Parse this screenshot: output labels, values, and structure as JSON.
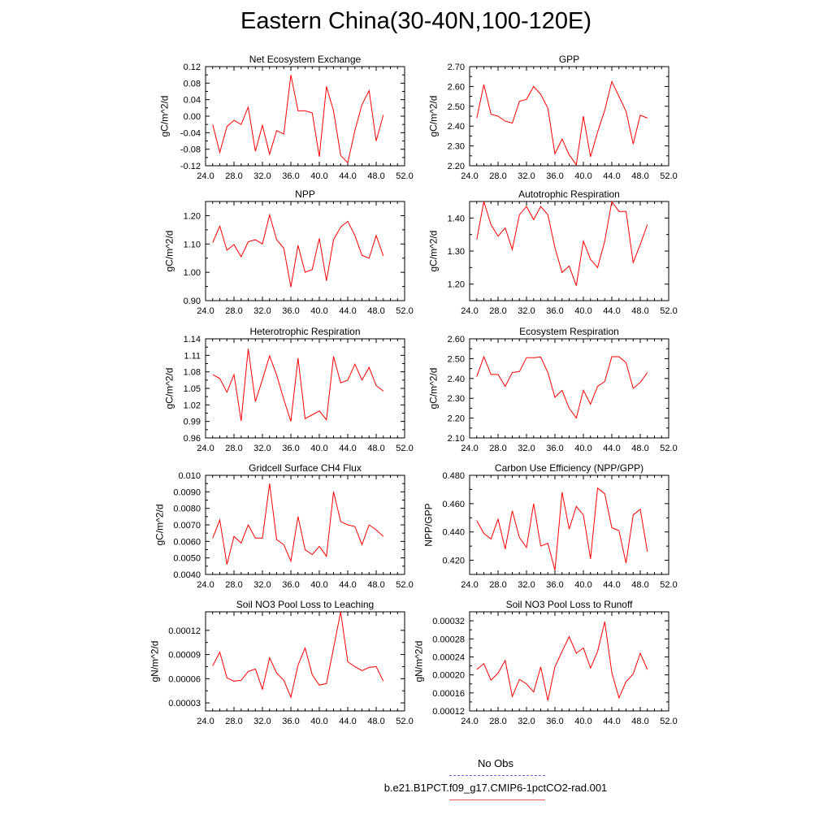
{
  "title": "Eastern China(30-40N,100-120E)",
  "legend": {
    "obs_label": "No Obs",
    "obs_color": "#6b6bd6",
    "model_label": "b.e21.B1PCT.f09_g17.CMIP6-1pctCO2-rad.001",
    "model_color": "#e05a5a"
  },
  "line_color": "#ff0000",
  "chart_data": [
    {
      "type": "line",
      "title": "Net Ecosystem Exchange",
      "ylabel": "gC/m^2/d",
      "xlim": [
        24,
        52
      ],
      "xticks": [
        24,
        28,
        32,
        36,
        40,
        44,
        48,
        52
      ],
      "xtick_labels": [
        "24.0",
        "28.0",
        "32.0",
        "36.0",
        "40.0",
        "44.0",
        "48.0",
        "52.0"
      ],
      "ylim": [
        -0.12,
        0.12
      ],
      "yticks": [
        -0.12,
        -0.08,
        -0.04,
        0.0,
        0.04,
        0.08,
        0.12
      ],
      "ytick_labels": [
        "-0.12",
        "-0.08",
        "-0.04",
        "0.00",
        "0.04",
        "0.08",
        "0.12"
      ],
      "x": [
        25,
        26,
        27,
        28,
        29,
        30,
        31,
        32,
        33,
        34,
        35,
        36,
        37,
        38,
        39,
        40,
        41,
        42,
        43,
        44,
        45,
        46,
        47,
        48,
        49
      ],
      "y": [
        -0.02,
        -0.088,
        -0.025,
        -0.01,
        -0.02,
        0.022,
        -0.085,
        -0.022,
        -0.092,
        -0.035,
        -0.043,
        0.1,
        0.013,
        0.013,
        0.008,
        -0.098,
        0.072,
        0.013,
        -0.095,
        -0.113,
        -0.035,
        0.028,
        0.062,
        -0.06,
        0.003
      ]
    },
    {
      "type": "line",
      "title": "GPP",
      "ylabel": "gC/m^2/d",
      "xlim": [
        24,
        52
      ],
      "xticks": [
        24,
        28,
        32,
        36,
        40,
        44,
        48,
        52
      ],
      "xtick_labels": [
        "24.0",
        "28.0",
        "32.0",
        "36.0",
        "40.0",
        "44.0",
        "48.0",
        "52.0"
      ],
      "ylim": [
        2.2,
        2.7
      ],
      "yticks": [
        2.2,
        2.3,
        2.4,
        2.5,
        2.6,
        2.7
      ],
      "ytick_labels": [
        "2.20",
        "2.30",
        "2.40",
        "2.50",
        "2.60",
        "2.70"
      ],
      "x": [
        25,
        26,
        27,
        28,
        29,
        30,
        31,
        32,
        33,
        34,
        35,
        36,
        37,
        38,
        39,
        40,
        41,
        42,
        43,
        44,
        45,
        46,
        47,
        48,
        49
      ],
      "y": [
        2.44,
        2.61,
        2.46,
        2.45,
        2.425,
        2.415,
        2.525,
        2.535,
        2.6,
        2.56,
        2.49,
        2.26,
        2.335,
        2.255,
        2.205,
        2.45,
        2.245,
        2.37,
        2.48,
        2.625,
        2.55,
        2.475,
        2.31,
        2.455,
        2.44
      ]
    },
    {
      "type": "line",
      "title": "NPP",
      "ylabel": "gC/m^2/d",
      "xlim": [
        24,
        52
      ],
      "xticks": [
        24,
        28,
        32,
        36,
        40,
        44,
        48,
        52
      ],
      "xtick_labels": [
        "24.0",
        "28.0",
        "32.0",
        "36.0",
        "40.0",
        "44.0",
        "48.0",
        "52.0"
      ],
      "ylim": [
        0.9,
        1.25
      ],
      "yticks": [
        0.9,
        1.0,
        1.1,
        1.2
      ],
      "ytick_labels": [
        "0.90",
        "1.00",
        "1.10",
        "1.20"
      ],
      "x": [
        25,
        26,
        27,
        28,
        29,
        30,
        31,
        32,
        33,
        34,
        35,
        36,
        37,
        38,
        39,
        40,
        41,
        42,
        43,
        44,
        45,
        46,
        47,
        48,
        49
      ],
      "y": [
        1.105,
        1.163,
        1.078,
        1.098,
        1.055,
        1.108,
        1.115,
        1.1,
        1.203,
        1.115,
        1.085,
        0.948,
        1.095,
        1.0,
        1.01,
        1.12,
        0.97,
        1.115,
        1.16,
        1.18,
        1.13,
        1.06,
        1.05,
        1.13,
        1.058
      ]
    },
    {
      "type": "line",
      "title": "Autotrophic Respiration",
      "ylabel": "gC/m^2/d",
      "xlim": [
        24,
        52
      ],
      "xticks": [
        24,
        28,
        32,
        36,
        40,
        44,
        48,
        52
      ],
      "xtick_labels": [
        "24.0",
        "28.0",
        "32.0",
        "36.0",
        "40.0",
        "44.0",
        "48.0",
        "52.0"
      ],
      "ylim": [
        1.15,
        1.45
      ],
      "yticks": [
        1.2,
        1.3,
        1.4
      ],
      "ytick_labels": [
        "1.20",
        "1.30",
        "1.40"
      ],
      "x": [
        25,
        26,
        27,
        28,
        29,
        30,
        31,
        32,
        33,
        34,
        35,
        36,
        37,
        38,
        39,
        40,
        41,
        42,
        43,
        44,
        45,
        46,
        47,
        48,
        49
      ],
      "y": [
        1.335,
        1.45,
        1.38,
        1.345,
        1.37,
        1.305,
        1.41,
        1.435,
        1.395,
        1.435,
        1.41,
        1.31,
        1.235,
        1.255,
        1.195,
        1.33,
        1.275,
        1.25,
        1.33,
        1.45,
        1.42,
        1.42,
        1.265,
        1.32,
        1.38
      ]
    },
    {
      "type": "line",
      "title": "Heterotrophic Respiration",
      "ylabel": "gC/m^2/d",
      "xlim": [
        24,
        52
      ],
      "xticks": [
        24,
        28,
        32,
        36,
        40,
        44,
        48,
        52
      ],
      "xtick_labels": [
        "24.0",
        "28.0",
        "32.0",
        "36.0",
        "40.0",
        "44.0",
        "48.0",
        "52.0"
      ],
      "ylim": [
        0.96,
        1.14
      ],
      "yticks": [
        0.96,
        0.99,
        1.02,
        1.05,
        1.08,
        1.11,
        1.14
      ],
      "ytick_labels": [
        "0.96",
        "0.99",
        "1.02",
        "1.05",
        "1.08",
        "1.11",
        "1.14"
      ],
      "x": [
        25,
        26,
        27,
        28,
        29,
        30,
        31,
        32,
        33,
        34,
        35,
        36,
        37,
        38,
        39,
        40,
        41,
        42,
        43,
        44,
        45,
        46,
        47,
        48,
        49
      ],
      "y": [
        1.075,
        1.068,
        1.043,
        1.075,
        0.991,
        1.122,
        1.026,
        1.066,
        1.109,
        1.074,
        1.03,
        0.99,
        1.105,
        0.995,
        1.002,
        1.009,
        0.993,
        1.108,
        1.06,
        1.065,
        1.094,
        1.065,
        1.088,
        1.055,
        1.045
      ]
    },
    {
      "type": "line",
      "title": "Ecosystem Respiration",
      "ylabel": "gC/m^2/d",
      "xlim": [
        24,
        52
      ],
      "xticks": [
        24,
        28,
        32,
        36,
        40,
        44,
        48,
        52
      ],
      "xtick_labels": [
        "24.0",
        "28.0",
        "32.0",
        "36.0",
        "40.0",
        "44.0",
        "48.0",
        "52.0"
      ],
      "ylim": [
        2.1,
        2.6
      ],
      "yticks": [
        2.1,
        2.2,
        2.3,
        2.4,
        2.5,
        2.6
      ],
      "ytick_labels": [
        "2.10",
        "2.20",
        "2.30",
        "2.40",
        "2.50",
        "2.60"
      ],
      "x": [
        25,
        26,
        27,
        28,
        29,
        30,
        31,
        32,
        33,
        34,
        35,
        36,
        37,
        38,
        39,
        40,
        41,
        42,
        43,
        44,
        45,
        46,
        47,
        48,
        49
      ],
      "y": [
        2.41,
        2.51,
        2.42,
        2.42,
        2.36,
        2.43,
        2.435,
        2.505,
        2.505,
        2.508,
        2.43,
        2.305,
        2.34,
        2.25,
        2.2,
        2.34,
        2.27,
        2.36,
        2.385,
        2.51,
        2.51,
        2.48,
        2.35,
        2.38,
        2.43
      ]
    },
    {
      "type": "line",
      "title": "Gridcell Surface CH4 Flux",
      "ylabel": "gC/m^2/d",
      "xlim": [
        24,
        52
      ],
      "xticks": [
        24,
        28,
        32,
        36,
        40,
        44,
        48,
        52
      ],
      "xtick_labels": [
        "24.0",
        "28.0",
        "32.0",
        "36.0",
        "40.0",
        "44.0",
        "48.0",
        "52.0"
      ],
      "ylim": [
        0.004,
        0.01
      ],
      "yticks": [
        0.004,
        0.005,
        0.006,
        0.007,
        0.008,
        0.009,
        0.01
      ],
      "ytick_labels": [
        "0.0040",
        "0.0050",
        "0.0060",
        "0.0070",
        "0.0080",
        "0.0090",
        "0.010"
      ],
      "x": [
        25,
        26,
        27,
        28,
        29,
        30,
        31,
        32,
        33,
        34,
        35,
        36,
        37,
        38,
        39,
        40,
        41,
        42,
        43,
        44,
        45,
        46,
        47,
        48,
        49
      ],
      "y": [
        0.0062,
        0.0073,
        0.0046,
        0.0063,
        0.0059,
        0.007,
        0.0062,
        0.0062,
        0.0095,
        0.0061,
        0.0058,
        0.0048,
        0.0075,
        0.0055,
        0.0052,
        0.0057,
        0.0051,
        0.009,
        0.0072,
        0.007,
        0.0069,
        0.0058,
        0.007,
        0.0067,
        0.0063
      ]
    },
    {
      "type": "line",
      "title": "Carbon Use Efficiency (NPP/GPP)",
      "ylabel": "NPP/GPP",
      "xlim": [
        24,
        52
      ],
      "xticks": [
        24,
        28,
        32,
        36,
        40,
        44,
        48,
        52
      ],
      "xtick_labels": [
        "24.0",
        "28.0",
        "32.0",
        "36.0",
        "40.0",
        "44.0",
        "48.0",
        "52.0"
      ],
      "ylim": [
        0.41,
        0.48
      ],
      "yticks": [
        0.42,
        0.44,
        0.46,
        0.48
      ],
      "ytick_labels": [
        "0.420",
        "0.440",
        "0.460",
        "0.480"
      ],
      "x": [
        25,
        26,
        27,
        28,
        29,
        30,
        31,
        32,
        33,
        34,
        35,
        36,
        37,
        38,
        39,
        40,
        41,
        42,
        43,
        44,
        45,
        46,
        47,
        48,
        49
      ],
      "y": [
        0.448,
        0.439,
        0.435,
        0.449,
        0.428,
        0.455,
        0.436,
        0.429,
        0.46,
        0.43,
        0.432,
        0.413,
        0.468,
        0.442,
        0.458,
        0.452,
        0.421,
        0.471,
        0.467,
        0.443,
        0.441,
        0.418,
        0.452,
        0.456,
        0.426
      ]
    },
    {
      "type": "line",
      "title": "Soil NO3 Pool Loss to Leaching",
      "ylabel": "gN/m^2/d",
      "xlim": [
        24,
        52
      ],
      "xticks": [
        24,
        28,
        32,
        36,
        40,
        44,
        48,
        52
      ],
      "xtick_labels": [
        "24.0",
        "28.0",
        "32.0",
        "36.0",
        "40.0",
        "44.0",
        "48.0",
        "52.0"
      ],
      "ylim": [
        2e-05,
        0.000143
      ],
      "yticks": [
        3e-05,
        6e-05,
        9e-05,
        0.00012
      ],
      "ytick_labels": [
        "0.00003",
        "0.00006",
        "0.00009",
        "0.00012"
      ],
      "x": [
        25,
        26,
        27,
        28,
        29,
        30,
        31,
        32,
        33,
        34,
        35,
        36,
        37,
        38,
        39,
        40,
        41,
        42,
        43,
        44,
        45,
        46,
        47,
        48,
        49
      ],
      "y": [
        7.6e-05,
        9.3e-05,
        6.1e-05,
        5.7e-05,
        5.8e-05,
        6.9e-05,
        7.2e-05,
        4.7e-05,
        8.6e-05,
        6.7e-05,
        5.8e-05,
        3.7e-05,
        7.7e-05,
        9.8e-05,
        6.5e-05,
        5.2e-05,
        5.4e-05,
        9.8e-05,
        0.000143,
        8.1e-05,
        7.5e-05,
        7e-05,
        7.4e-05,
        7.5e-05,
        5.7e-05
      ]
    },
    {
      "type": "line",
      "title": "Soil NO3 Pool Loss to Runoff",
      "ylabel": "gN/m^2/d",
      "xlim": [
        24,
        52
      ],
      "xticks": [
        24,
        28,
        32,
        36,
        40,
        44,
        48,
        52
      ],
      "xtick_labels": [
        "24.0",
        "28.0",
        "32.0",
        "36.0",
        "40.0",
        "44.0",
        "48.0",
        "52.0"
      ],
      "ylim": [
        0.00012,
        0.00034
      ],
      "yticks": [
        0.00012,
        0.00016,
        0.0002,
        0.00024,
        0.00028,
        0.00032
      ],
      "ytick_labels": [
        "0.00012",
        "0.00016",
        "0.00020",
        "0.00024",
        "0.00028",
        "0.00032"
      ],
      "x": [
        25,
        26,
        27,
        28,
        29,
        30,
        31,
        32,
        33,
        34,
        35,
        36,
        37,
        38,
        39,
        40,
        41,
        42,
        43,
        44,
        45,
        46,
        47,
        48,
        49
      ],
      "y": [
        0.000212,
        0.000225,
        0.000188,
        0.000204,
        0.000232,
        0.000152,
        0.00019,
        0.00018,
        0.000162,
        0.000218,
        0.000143,
        0.000218,
        0.000252,
        0.000285,
        0.000248,
        0.00026,
        0.000215,
        0.000252,
        0.000318,
        0.000205,
        0.000149,
        0.000185,
        0.000202,
        0.000248,
        0.000212
      ]
    }
  ]
}
